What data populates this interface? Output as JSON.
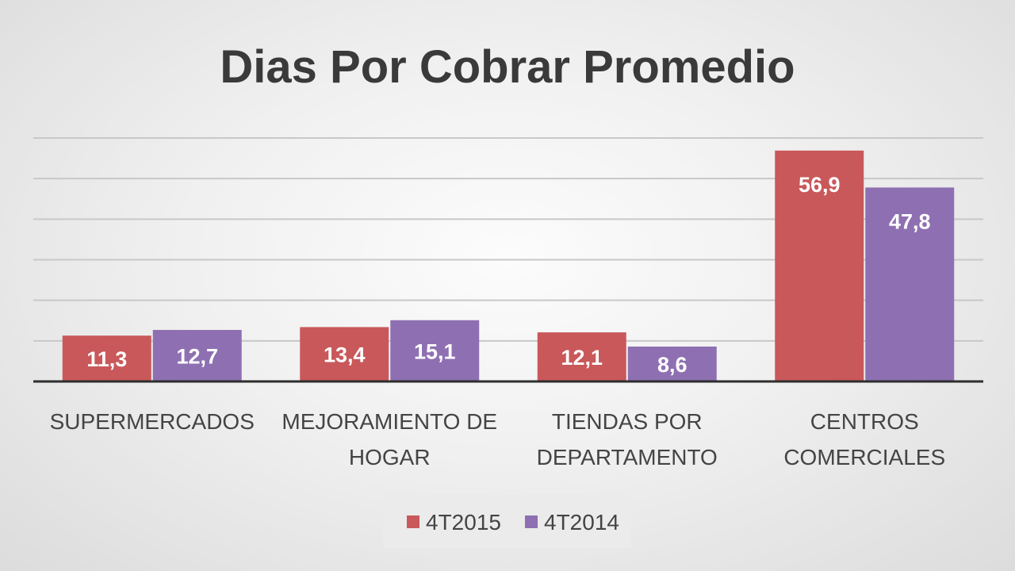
{
  "colors": {
    "series_1": "#c9585a",
    "series_2": "#8e70b2",
    "gridline": "#c8c8c8",
    "axis": "#2e2e2e"
  },
  "chart_data": {
    "type": "bar",
    "title": "Dias Por Cobrar Promedio",
    "categories": [
      [
        "SUPERMERCADOS"
      ],
      [
        "MEJORAMIENTO DE",
        "HOGAR"
      ],
      [
        "TIENDAS POR",
        "DEPARTAMENTO"
      ],
      [
        "CENTROS",
        "COMERCIALES"
      ]
    ],
    "series": [
      {
        "name": "4T2015",
        "values": [
          11.3,
          13.4,
          12.1,
          56.9
        ],
        "labels": [
          "11,3",
          "13,4",
          "12,1",
          "56,9"
        ]
      },
      {
        "name": "4T2014",
        "values": [
          12.7,
          15.1,
          8.6,
          47.8
        ],
        "labels": [
          "12,7",
          "15,1",
          "8,6",
          "47,8"
        ]
      }
    ],
    "ylim": [
      0,
      60
    ],
    "grid": true,
    "legend": "bottom",
    "xlabel": "",
    "ylabel": ""
  }
}
